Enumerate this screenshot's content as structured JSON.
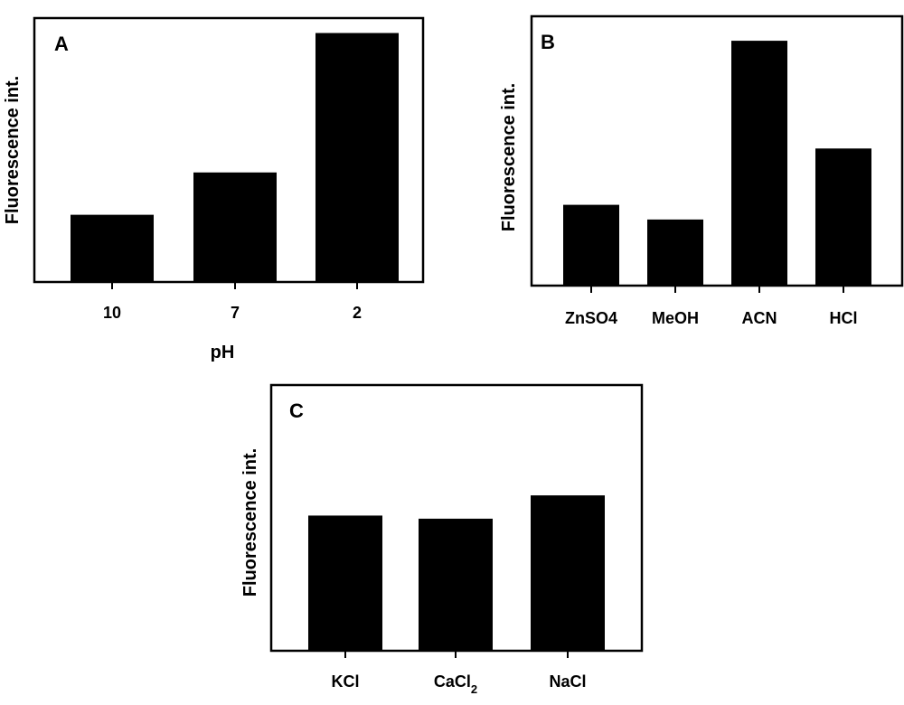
{
  "chart_data": [
    {
      "type": "bar",
      "panel": "A",
      "ylabel": "Fluorescence int.",
      "xlabel": "pH",
      "categories": [
        "10",
        "7",
        "2"
      ],
      "values": [
        0.27,
        0.44,
        1.0
      ],
      "ylim": [
        0,
        1.06
      ]
    },
    {
      "type": "bar",
      "panel": "B",
      "ylabel": "Fluorescence int.",
      "xlabel": "",
      "categories": [
        "ZnSO4",
        "MeOH",
        "ACN",
        "HCl"
      ],
      "values": [
        0.33,
        0.27,
        1.0,
        0.56
      ],
      "ylim": [
        0,
        1.1
      ]
    },
    {
      "type": "bar",
      "panel": "C",
      "ylabel": "Fluorescence int.",
      "xlabel": "",
      "categories": [
        "KCl",
        "CaCl2",
        "NaCl"
      ],
      "values": [
        0.87,
        0.85,
        1.0
      ],
      "ylim": [
        0,
        1.71
      ]
    }
  ],
  "styles": {
    "bar_color": "#000000",
    "background": "#ffffff"
  }
}
